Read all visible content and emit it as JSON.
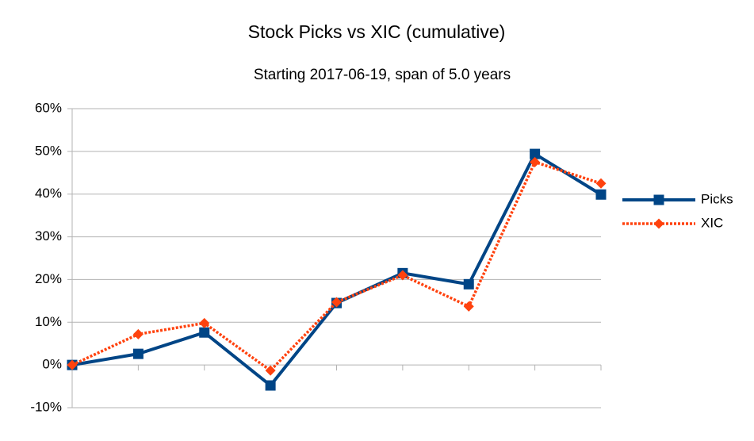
{
  "chart_data": {
    "type": "line",
    "title": "Stock Picks vs XIC (cumulative)",
    "subtitle": "Starting 2017-06-19, span of 5.0 years",
    "categories": [
      null,
      null,
      null,
      null,
      null,
      null,
      null,
      null,
      null
    ],
    "series": [
      {
        "name": "Picks",
        "color": "#004586",
        "marker": "square",
        "values": [
          0,
          2.6,
          7.6,
          -4.8,
          14.5,
          21.5,
          18.9,
          49.4,
          39.9
        ]
      },
      {
        "name": "XIC",
        "color": "#ff420e",
        "marker": "diamond",
        "dashed": true,
        "values": [
          0,
          7.2,
          9.8,
          -1.3,
          14.7,
          21.0,
          13.7,
          47.5,
          42.5
        ]
      }
    ],
    "ylim": [
      -10,
      60
    ],
    "yticks": [
      {
        "value": -10,
        "label": "-10%"
      },
      {
        "value": 0,
        "label": "0%"
      },
      {
        "value": 10,
        "label": "10%"
      },
      {
        "value": 20,
        "label": "20%"
      },
      {
        "value": 30,
        "label": "30%"
      },
      {
        "value": 40,
        "label": "40%"
      },
      {
        "value": 50,
        "label": "50%"
      },
      {
        "value": 60,
        "label": "60%"
      }
    ],
    "grid": true,
    "legend": "right"
  }
}
